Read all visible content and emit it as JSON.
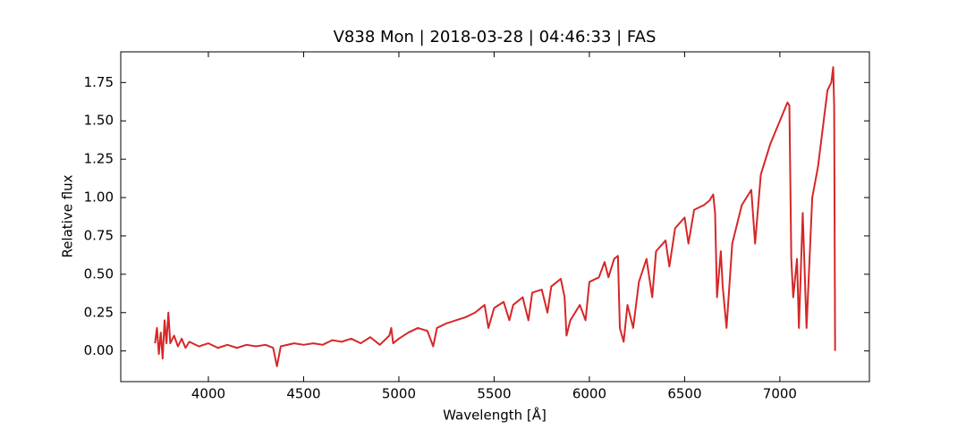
{
  "chart_data": {
    "type": "line",
    "title": "V838 Mon | 2018-03-28 | 04:46:33 | FAS",
    "x_label": "Wavelength [Å]",
    "y_label": "Relative flux",
    "xlim": [
      3540,
      7470
    ],
    "ylim": [
      -0.2,
      1.95
    ],
    "xticks": [
      4000,
      4500,
      5000,
      5500,
      6000,
      6500,
      7000
    ],
    "yticks": [
      {
        "value": 0,
        "label": "0.00"
      },
      {
        "value": 0.25,
        "label": "0.25"
      },
      {
        "value": 0.5,
        "label": "0.50"
      },
      {
        "value": 0.75,
        "label": "0.75"
      },
      {
        "value": 1,
        "label": "1.00"
      },
      {
        "value": 1.25,
        "label": "1.25"
      },
      {
        "value": 1.5,
        "label": "1.50"
      },
      {
        "value": 1.75,
        "label": "1.75"
      }
    ],
    "series": [
      {
        "color": "#d62728",
        "x": [
          3720,
          3730,
          3740,
          3750,
          3760,
          3770,
          3780,
          3790,
          3800,
          3820,
          3840,
          3860,
          3880,
          3900,
          3950,
          4000,
          4050,
          4100,
          4150,
          4200,
          4250,
          4300,
          4340,
          4360,
          4380,
          4450,
          4500,
          4550,
          4600,
          4650,
          4700,
          4750,
          4800,
          4850,
          4900,
          4950,
          4960,
          4970,
          5000,
          5050,
          5100,
          5150,
          5180,
          5200,
          5250,
          5300,
          5350,
          5400,
          5450,
          5470,
          5500,
          5550,
          5580,
          5600,
          5650,
          5680,
          5700,
          5750,
          5780,
          5800,
          5850,
          5870,
          5880,
          5900,
          5950,
          5980,
          6000,
          6050,
          6080,
          6100,
          6130,
          6150,
          6160,
          6180,
          6200,
          6230,
          6260,
          6300,
          6330,
          6350,
          6400,
          6420,
          6450,
          6500,
          6520,
          6550,
          6600,
          6630,
          6650,
          6660,
          6670,
          6690,
          6700,
          6720,
          6750,
          6800,
          6850,
          6870,
          6900,
          6950,
          7000,
          7040,
          7050,
          7060,
          7070,
          7090,
          7100,
          7120,
          7140,
          7170,
          7200,
          7230,
          7250,
          7270,
          7280,
          7285,
          7290
        ],
        "values": [
          0.05,
          0.15,
          -0.02,
          0.12,
          -0.05,
          0.2,
          0.05,
          0.25,
          0.05,
          0.1,
          0.03,
          0.08,
          0.02,
          0.06,
          0.03,
          0.05,
          0.02,
          0.04,
          0.02,
          0.04,
          0.03,
          0.04,
          0.02,
          -0.1,
          0.03,
          0.05,
          0.04,
          0.05,
          0.04,
          0.07,
          0.06,
          0.08,
          0.05,
          0.09,
          0.04,
          0.1,
          0.15,
          0.05,
          0.08,
          0.12,
          0.15,
          0.13,
          0.03,
          0.15,
          0.18,
          0.2,
          0.22,
          0.25,
          0.3,
          0.15,
          0.28,
          0.32,
          0.2,
          0.3,
          0.35,
          0.2,
          0.38,
          0.4,
          0.25,
          0.42,
          0.47,
          0.35,
          0.1,
          0.2,
          0.3,
          0.2,
          0.45,
          0.48,
          0.58,
          0.48,
          0.6,
          0.62,
          0.15,
          0.06,
          0.3,
          0.15,
          0.45,
          0.6,
          0.35,
          0.65,
          0.72,
          0.55,
          0.8,
          0.87,
          0.7,
          0.92,
          0.95,
          0.98,
          1.02,
          0.9,
          0.35,
          0.65,
          0.42,
          0.15,
          0.7,
          0.95,
          1.05,
          0.7,
          1.15,
          1.35,
          1.5,
          1.62,
          1.6,
          0.6,
          0.35,
          0.6,
          0.15,
          0.9,
          0.15,
          1.0,
          1.2,
          1.5,
          1.7,
          1.75,
          1.85,
          1.6,
          0
        ]
      }
    ]
  }
}
